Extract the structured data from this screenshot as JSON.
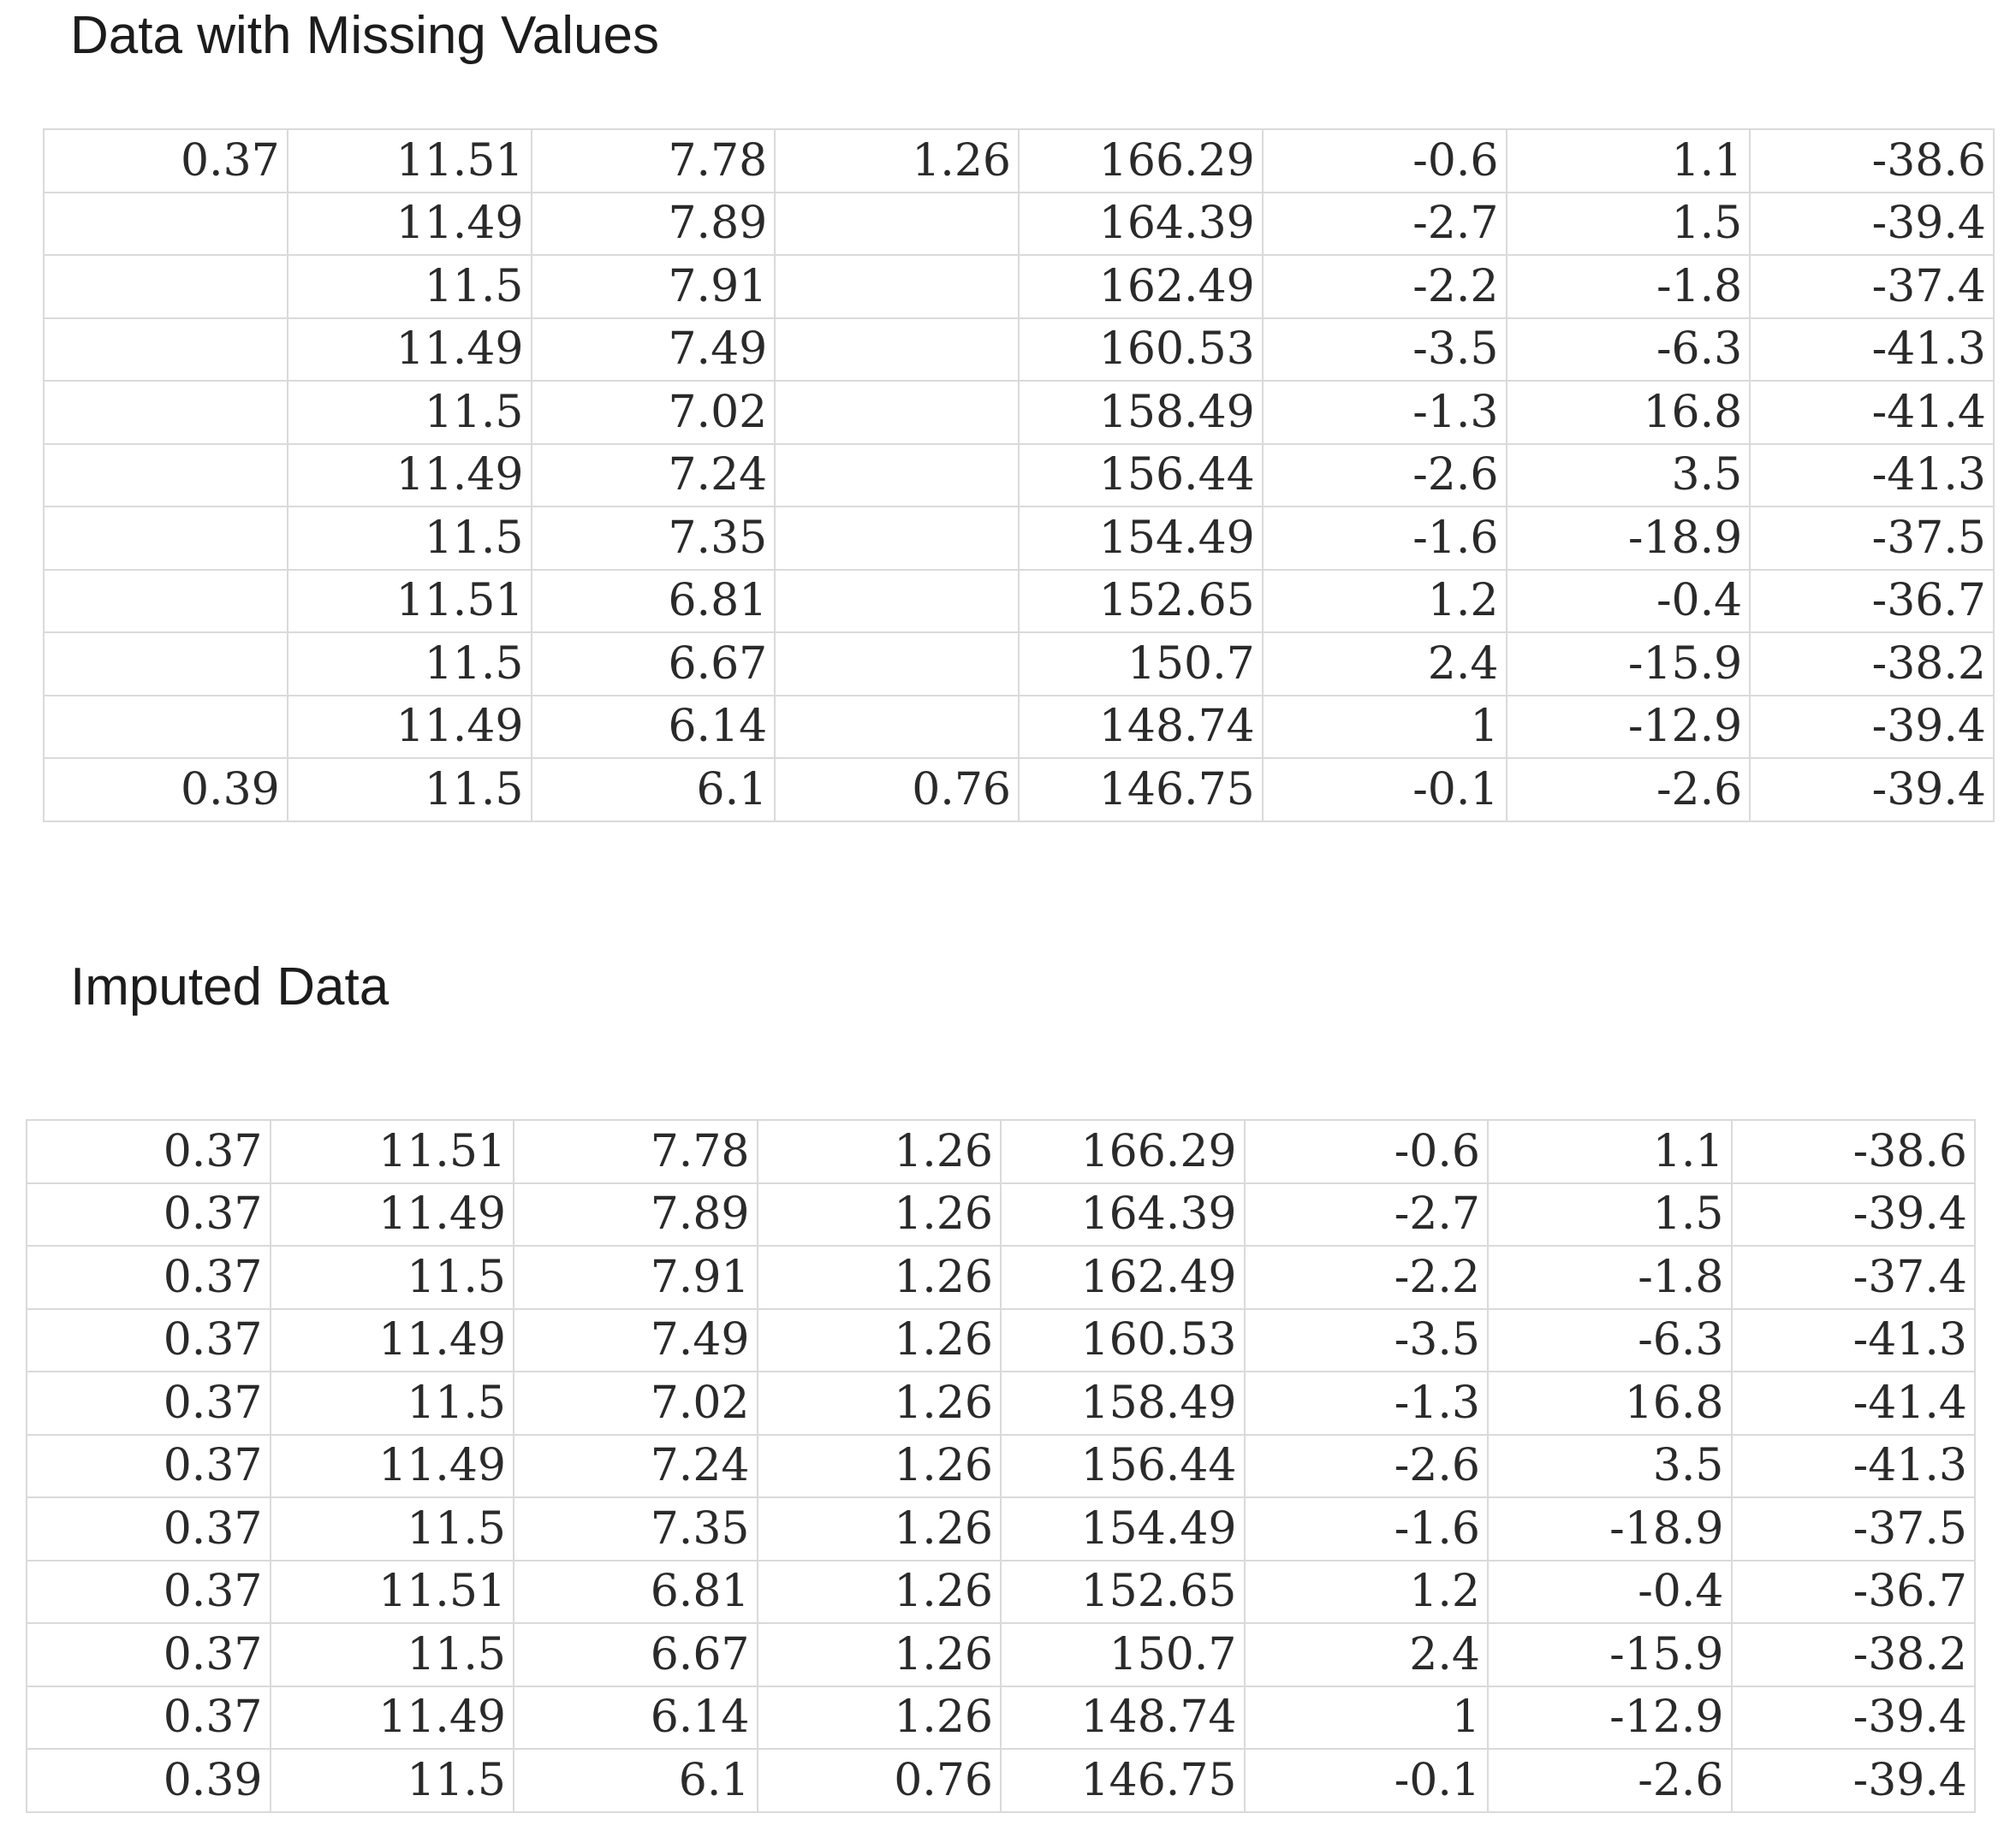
{
  "missing": {
    "title": "Data with Missing Values",
    "rows": [
      [
        "0.37",
        "11.51",
        "7.78",
        "1.26",
        "166.29",
        "-0.6",
        "1.1",
        "-38.6"
      ],
      [
        "",
        "11.49",
        "7.89",
        "",
        "164.39",
        "-2.7",
        "1.5",
        "-39.4"
      ],
      [
        "",
        "11.5",
        "7.91",
        "",
        "162.49",
        "-2.2",
        "-1.8",
        "-37.4"
      ],
      [
        "",
        "11.49",
        "7.49",
        "",
        "160.53",
        "-3.5",
        "-6.3",
        "-41.3"
      ],
      [
        "",
        "11.5",
        "7.02",
        "",
        "158.49",
        "-1.3",
        "16.8",
        "-41.4"
      ],
      [
        "",
        "11.49",
        "7.24",
        "",
        "156.44",
        "-2.6",
        "3.5",
        "-41.3"
      ],
      [
        "",
        "11.5",
        "7.35",
        "",
        "154.49",
        "-1.6",
        "-18.9",
        "-37.5"
      ],
      [
        "",
        "11.51",
        "6.81",
        "",
        "152.65",
        "1.2",
        "-0.4",
        "-36.7"
      ],
      [
        "",
        "11.5",
        "6.67",
        "",
        "150.7",
        "2.4",
        "-15.9",
        "-38.2"
      ],
      [
        "",
        "11.49",
        "6.14",
        "",
        "148.74",
        "1",
        "-12.9",
        "-39.4"
      ],
      [
        "0.39",
        "11.5",
        "6.1",
        "0.76",
        "146.75",
        "-0.1",
        "-2.6",
        "-39.4"
      ]
    ]
  },
  "imputed": {
    "title": "Imputed Data",
    "rows": [
      [
        "0.37",
        "11.51",
        "7.78",
        "1.26",
        "166.29",
        "-0.6",
        "1.1",
        "-38.6"
      ],
      [
        "0.37",
        "11.49",
        "7.89",
        "1.26",
        "164.39",
        "-2.7",
        "1.5",
        "-39.4"
      ],
      [
        "0.37",
        "11.5",
        "7.91",
        "1.26",
        "162.49",
        "-2.2",
        "-1.8",
        "-37.4"
      ],
      [
        "0.37",
        "11.49",
        "7.49",
        "1.26",
        "160.53",
        "-3.5",
        "-6.3",
        "-41.3"
      ],
      [
        "0.37",
        "11.5",
        "7.02",
        "1.26",
        "158.49",
        "-1.3",
        "16.8",
        "-41.4"
      ],
      [
        "0.37",
        "11.49",
        "7.24",
        "1.26",
        "156.44",
        "-2.6",
        "3.5",
        "-41.3"
      ],
      [
        "0.37",
        "11.5",
        "7.35",
        "1.26",
        "154.49",
        "-1.6",
        "-18.9",
        "-37.5"
      ],
      [
        "0.37",
        "11.51",
        "6.81",
        "1.26",
        "152.65",
        "1.2",
        "-0.4",
        "-36.7"
      ],
      [
        "0.37",
        "11.5",
        "6.67",
        "1.26",
        "150.7",
        "2.4",
        "-15.9",
        "-38.2"
      ],
      [
        "0.37",
        "11.49",
        "6.14",
        "1.26",
        "148.74",
        "1",
        "-12.9",
        "-39.4"
      ],
      [
        "0.39",
        "11.5",
        "6.1",
        "0.76",
        "146.75",
        "-0.1",
        "-2.6",
        "-39.4"
      ]
    ]
  }
}
